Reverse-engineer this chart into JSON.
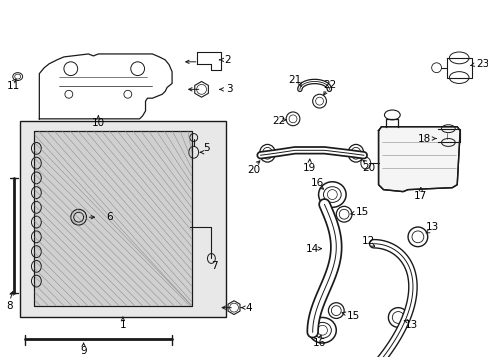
{
  "bg_color": "#ffffff",
  "line_color": "#1a1a1a",
  "fig_width": 4.89,
  "fig_height": 3.6,
  "dpi": 100,
  "label_fs": 7.5,
  "label_fw": "normal"
}
